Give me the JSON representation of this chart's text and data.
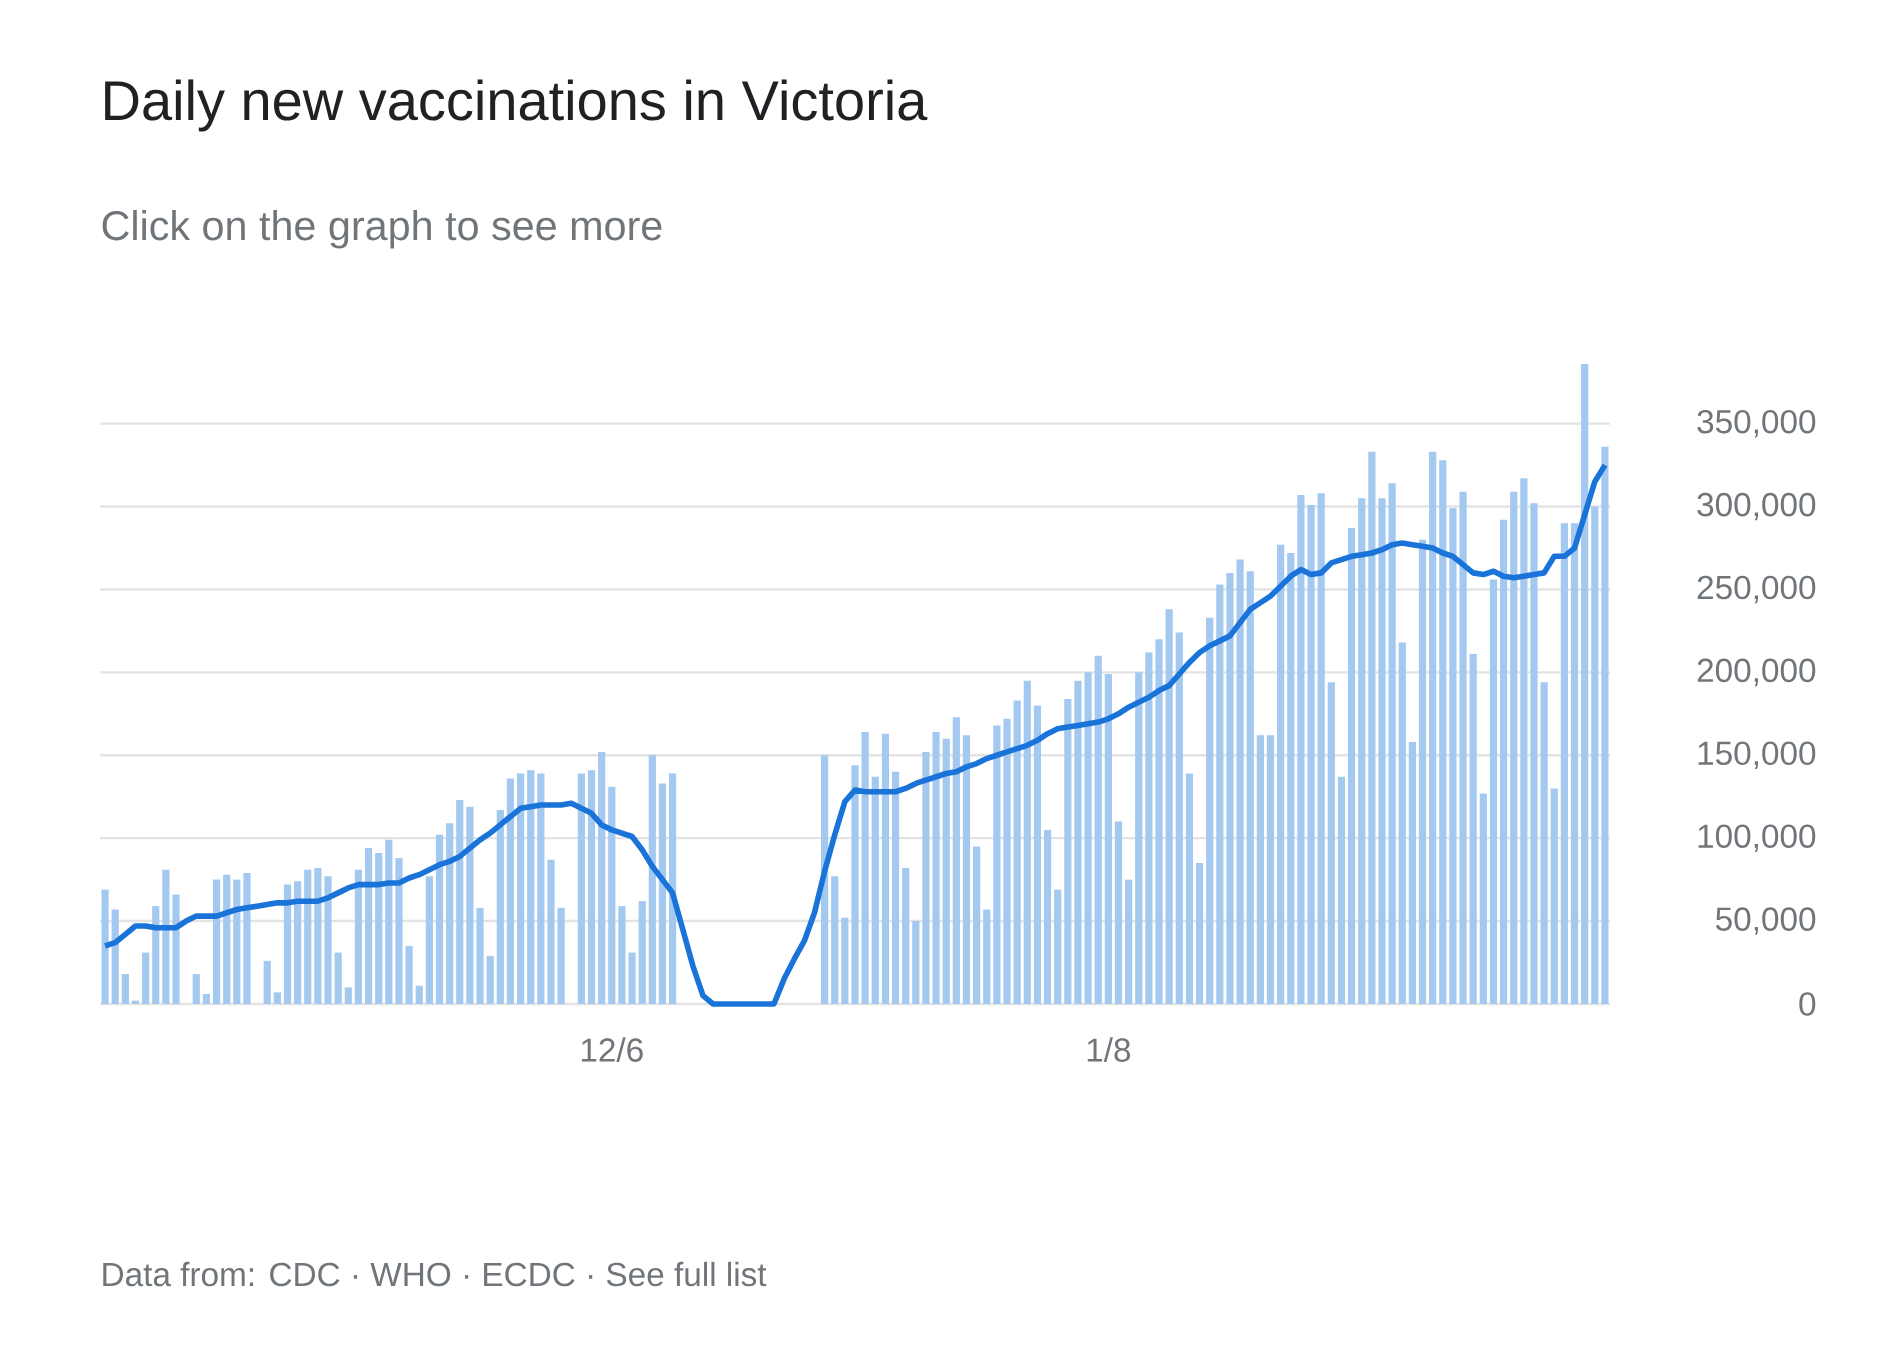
{
  "chart_data": {
    "type": "bar",
    "title": "Daily new vaccinations in Victoria",
    "subtitle": "Click on the graph to see more",
    "annotations": [
      "Data from: CDC · WHO · ECDC · See full list"
    ],
    "categories": [
      null,
      null,
      null,
      null,
      null,
      null,
      null,
      null,
      null,
      null,
      null,
      null,
      null,
      null,
      null,
      null,
      null,
      null,
      null,
      null,
      null,
      null,
      null,
      null,
      null,
      null,
      null,
      null,
      null,
      null,
      null,
      null,
      null,
      null,
      null,
      null,
      null,
      null,
      null,
      null,
      null,
      null,
      null,
      null,
      null,
      null,
      null,
      null,
      null,
      null,
      "12/6",
      null,
      null,
      null,
      null,
      null,
      null,
      null,
      null,
      null,
      null,
      null,
      null,
      null,
      null,
      null,
      null,
      null,
      null,
      null,
      null,
      null,
      null,
      null,
      null,
      null,
      null,
      null,
      null,
      null,
      null,
      null,
      null,
      null,
      null,
      null,
      null,
      null,
      null,
      null,
      null,
      null,
      null,
      null,
      null,
      null,
      null,
      null,
      null,
      "1/8",
      null,
      null,
      null,
      null,
      null,
      null,
      null,
      null,
      null,
      null,
      null,
      null,
      null,
      null,
      null,
      null,
      null,
      null,
      null,
      null,
      null,
      null,
      null,
      null,
      null,
      null,
      null,
      null,
      null,
      null,
      null,
      null,
      null,
      null,
      null,
      null,
      null,
      null,
      null,
      null,
      null,
      null,
      null,
      null,
      null,
      null,
      null,
      null,
      null
    ],
    "series": [
      {
        "color": "#a3c9f1",
        "values": [
          69000,
          57000,
          18000,
          2000,
          31000,
          59000,
          81000,
          66000,
          0,
          18000,
          6000,
          75000,
          78000,
          75000,
          79000,
          0,
          26000,
          7000,
          72000,
          74000,
          81000,
          82000,
          77000,
          31000,
          10000,
          81000,
          94000,
          91000,
          99000,
          88000,
          35000,
          11000,
          77000,
          102000,
          109000,
          123000,
          119000,
          58000,
          29000,
          117000,
          136000,
          139000,
          141000,
          139000,
          87000,
          58000,
          0,
          139000,
          141000,
          152000,
          131000,
          59000,
          31000,
          62000,
          150000,
          133000,
          139000,
          0,
          0,
          0,
          0,
          0,
          0,
          0,
          0,
          0,
          0,
          0,
          0,
          0,
          0,
          150000,
          77000,
          52000,
          144000,
          164000,
          137000,
          163000,
          140000,
          82000,
          50000,
          152000,
          164000,
          160000,
          173000,
          162000,
          95000,
          57000,
          168000,
          172000,
          183000,
          195000,
          180000,
          105000,
          69000,
          184000,
          195000,
          200000,
          210000,
          199000,
          110000,
          75000,
          200000,
          212000,
          220000,
          238000,
          224000,
          139000,
          85000,
          233000,
          253000,
          260000,
          268000,
          261000,
          162000,
          162000,
          277000,
          272000,
          307000,
          301000,
          308000,
          194000,
          137000,
          287000,
          305000,
          333000,
          305000,
          314000,
          218000,
          158000,
          280000,
          333000,
          328000,
          299000,
          309000,
          211000,
          127000,
          256000,
          292000,
          309000,
          317000,
          302000,
          194000,
          130000,
          290000,
          290000,
          386000,
          300000,
          336000
        ]
      },
      {
        "type": "line",
        "color": "#1a73d9",
        "marker": "none",
        "line_style": "solid",
        "values": [
          35000,
          37000,
          42000,
          47000,
          47000,
          46000,
          46000,
          46000,
          50000,
          53000,
          53000,
          53000,
          55000,
          57000,
          58000,
          59000,
          60000,
          61000,
          61000,
          62000,
          62000,
          62000,
          64000,
          67000,
          70000,
          72000,
          72000,
          72000,
          73000,
          73000,
          76000,
          78000,
          81000,
          84000,
          86000,
          89000,
          94000,
          99000,
          103000,
          108000,
          113000,
          118000,
          119000,
          120000,
          120000,
          120000,
          121000,
          118000,
          115000,
          108000,
          105000,
          103000,
          101000,
          93000,
          83000,
          75000,
          67000,
          45000,
          23000,
          5000,
          0,
          0,
          0,
          0,
          0,
          0,
          0,
          15000,
          27000,
          38000,
          55000,
          80000,
          102000,
          122000,
          129000,
          128000,
          128000,
          128000,
          128000,
          130000,
          133000,
          135000,
          137000,
          139000,
          140000,
          143000,
          145000,
          148000,
          150000,
          152000,
          154000,
          156000,
          159000,
          163000,
          166000,
          167000,
          168000,
          169000,
          170000,
          172000,
          175000,
          179000,
          182000,
          185000,
          189000,
          192000,
          199000,
          206000,
          212000,
          216000,
          219000,
          222000,
          230000,
          238000,
          242000,
          246000,
          252000,
          258000,
          262000,
          259000,
          260000,
          266000,
          268000,
          270000,
          271000,
          272000,
          274000,
          277000,
          278000,
          277000,
          276000,
          275000,
          272000,
          270000,
          265000,
          260000,
          259000,
          261000,
          258000,
          257000,
          258000,
          259000,
          260000,
          270000,
          270000,
          275000,
          295000,
          315000,
          325000
        ]
      }
    ],
    "yticks": [
      0,
      {
        "value": 50000,
        "label": "50,000"
      },
      {
        "value": 100000,
        "label": "100,000"
      },
      {
        "value": 150000,
        "label": "150,000"
      },
      {
        "value": 200000,
        "label": "200,000"
      },
      {
        "value": 250000,
        "label": "250,000"
      },
      {
        "value": 300000,
        "label": "300,000"
      },
      {
        "value": 350000,
        "label": "350,000"
      }
    ],
    "ylim": [
      0,
      386000
    ],
    "grid": "y"
  }
}
